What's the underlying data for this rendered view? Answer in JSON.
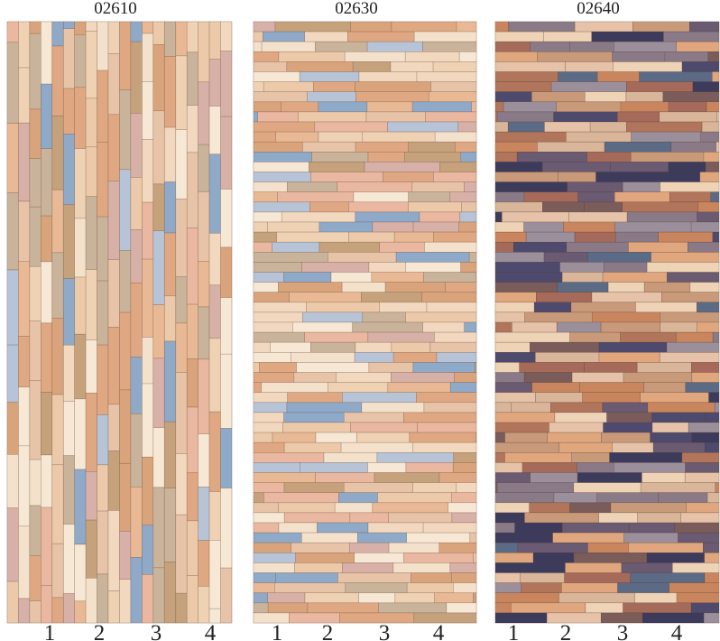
{
  "panels": [
    {
      "title": "02610",
      "labels": [
        "1",
        "2",
        "3",
        "4"
      ]
    },
    {
      "title": "02630",
      "labels": [
        "1",
        "2",
        "3",
        "4"
      ]
    },
    {
      "title": "02640",
      "labels": [
        "1",
        "2",
        "3",
        "4"
      ]
    }
  ]
}
